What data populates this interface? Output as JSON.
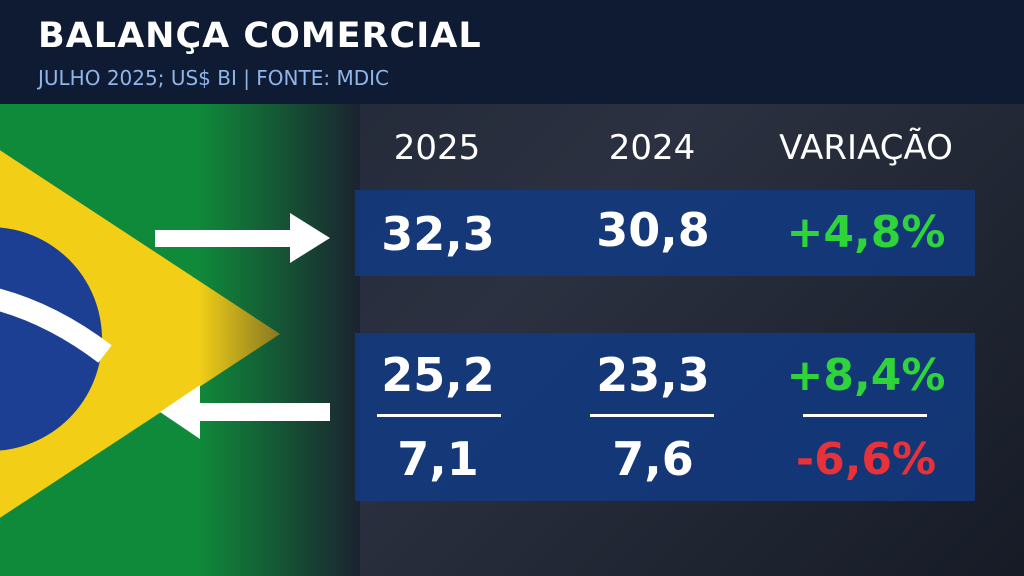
{
  "header": {
    "title": "BALANÇA COMERCIAL",
    "subtitle": "JULHO 2025; US$ BI | FONTE: MDIC"
  },
  "table": {
    "columns": [
      "2025",
      "2024",
      "VARIAÇÃO"
    ],
    "rows": [
      [
        "32,3",
        "30,8",
        "+4,8%"
      ],
      [
        "25,2",
        "23,3",
        "+8,4%"
      ],
      [
        "7,1",
        "7,6",
        "-6,6%"
      ]
    ]
  }
}
